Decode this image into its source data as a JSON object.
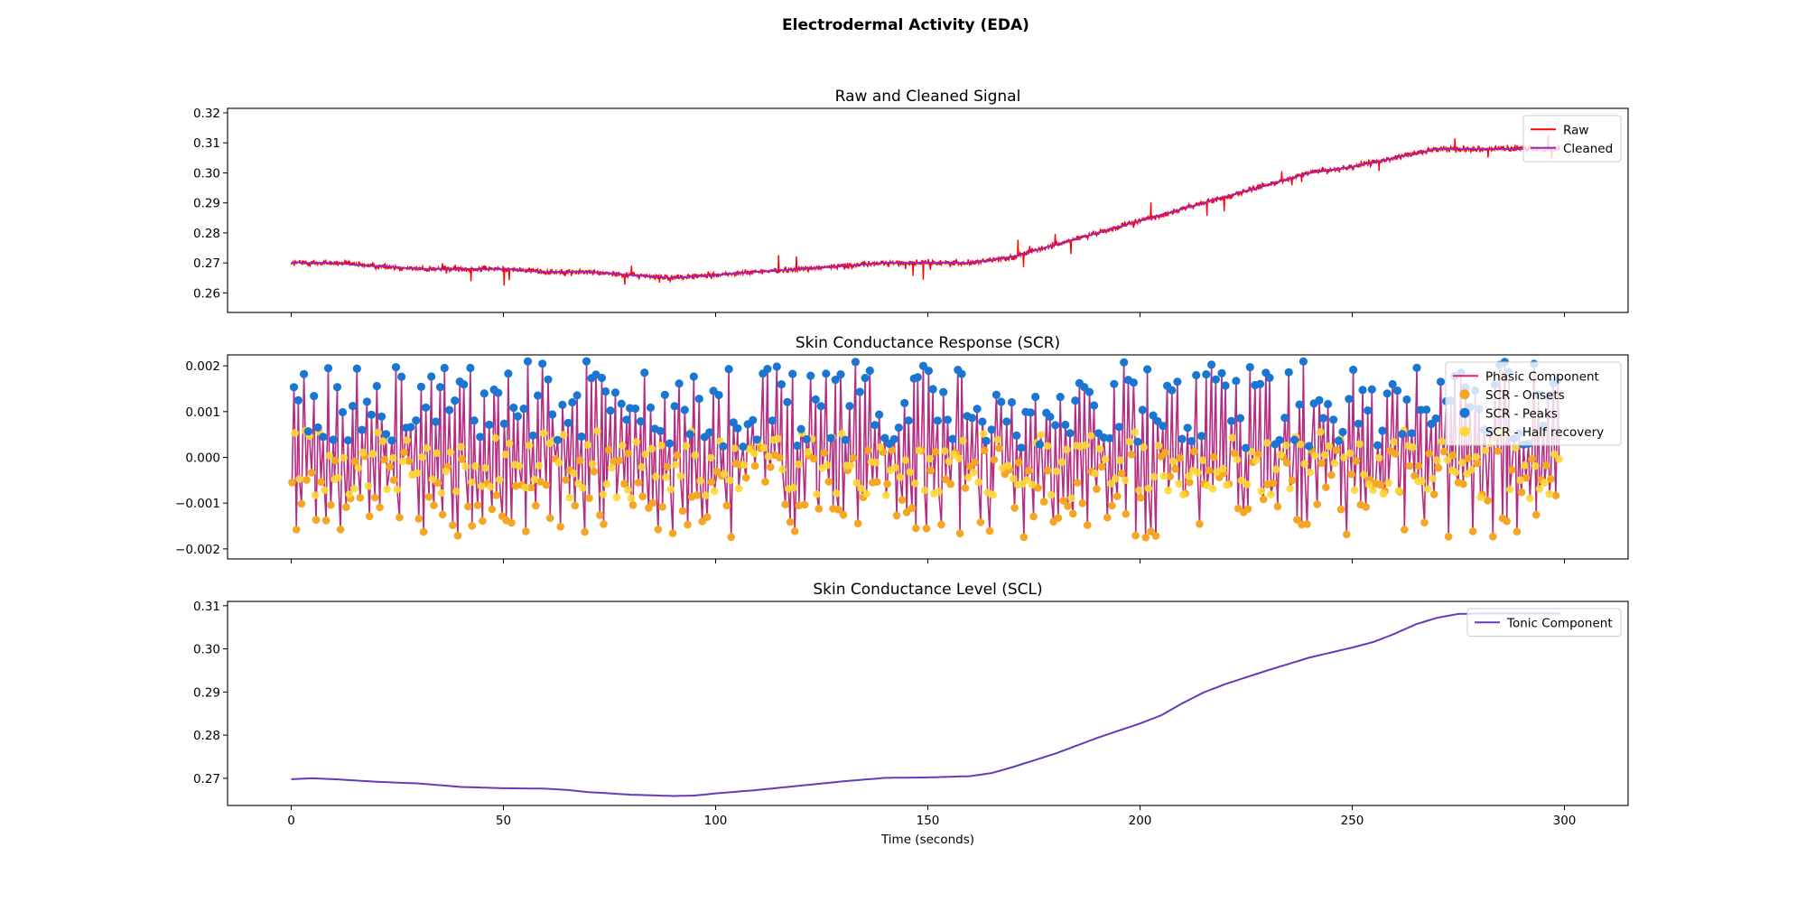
{
  "figure": {
    "title": "Electrodermal Activity (EDA)"
  },
  "chart_data": [
    {
      "type": "line",
      "title": "Raw and Cleaned Signal",
      "xlabel": "",
      "ylabel": "",
      "xlim": [
        -15,
        315
      ],
      "ylim": [
        0.2535,
        0.3215
      ],
      "x_ticks": [
        "0",
        "50",
        "100",
        "150",
        "200",
        "250",
        "300"
      ],
      "y_ticks": [
        "0.26",
        "0.27",
        "0.28",
        "0.29",
        "0.30",
        "0.31",
        "0.32"
      ],
      "legend_position": "upper-right",
      "grid": false,
      "series": [
        {
          "name": "Raw",
          "color": "#ff0000",
          "note_type": "noisy",
          "x": [
            0,
            10,
            20,
            30,
            40,
            50,
            60,
            70,
            80,
            90,
            100,
            110,
            120,
            130,
            140,
            150,
            160,
            165,
            170,
            180,
            190,
            200,
            210,
            220,
            230,
            240,
            250,
            260,
            270,
            280,
            290,
            300
          ],
          "y": [
            0.27,
            0.27,
            0.269,
            0.268,
            0.268,
            0.268,
            0.267,
            0.267,
            0.266,
            0.265,
            0.266,
            0.267,
            0.268,
            0.269,
            0.27,
            0.27,
            0.27,
            0.271,
            0.272,
            0.276,
            0.28,
            0.284,
            0.288,
            0.292,
            0.296,
            0.3,
            0.302,
            0.305,
            0.308,
            0.308,
            0.308,
            0.308
          ]
        },
        {
          "name": "Cleaned",
          "color": "#9c27b0",
          "x": [
            0,
            10,
            20,
            30,
            40,
            50,
            60,
            70,
            80,
            90,
            100,
            110,
            120,
            130,
            140,
            150,
            160,
            165,
            170,
            180,
            190,
            200,
            210,
            220,
            230,
            240,
            250,
            260,
            270,
            280,
            290,
            300
          ],
          "y": [
            0.27,
            0.27,
            0.269,
            0.268,
            0.268,
            0.268,
            0.267,
            0.267,
            0.266,
            0.265,
            0.266,
            0.267,
            0.268,
            0.269,
            0.27,
            0.27,
            0.27,
            0.271,
            0.272,
            0.276,
            0.28,
            0.284,
            0.288,
            0.292,
            0.296,
            0.3,
            0.302,
            0.305,
            0.308,
            0.308,
            0.308,
            0.308
          ]
        }
      ]
    },
    {
      "type": "line",
      "title": "Skin Conductance Response (SCR)",
      "xlabel": "",
      "ylabel": "",
      "xlim": [
        -15,
        315
      ],
      "ylim": [
        -0.00222,
        0.00224
      ],
      "x_ticks": [
        "0",
        "50",
        "100",
        "150",
        "200",
        "250",
        "300"
      ],
      "y_ticks": [
        "−0.002",
        "−0.001",
        "0.000",
        "0.001",
        "0.002"
      ],
      "y_tick_values": [
        -0.002,
        -0.001,
        0,
        0.001,
        0.002
      ],
      "legend_position": "upper-right",
      "grid": false,
      "scr_events": {
        "count": 260,
        "x_start": 0,
        "x_end": 299,
        "peak_range": [
          0.0002,
          0.0021
        ],
        "onset_range": [
          -0.00205,
          0.0006
        ],
        "recovery_range": [
          -0.0009,
          0.0006
        ]
      },
      "series": [
        {
          "name": "Phasic Component",
          "color": "#e91e63",
          "marker": "line"
        },
        {
          "name": "SCR - Onsets",
          "color": "#f5a623",
          "marker": "dot"
        },
        {
          "name": "SCR - Peaks",
          "color": "#1976d2",
          "marker": "dot"
        },
        {
          "name": "SCR - Half recovery",
          "color": "#fdd835",
          "marker": "dot"
        }
      ]
    },
    {
      "type": "line",
      "title": "Skin Conductance Level (SCL)",
      "xlabel": "Time (seconds)",
      "ylabel": "",
      "xlim": [
        -15,
        315
      ],
      "ylim": [
        0.2637,
        0.311
      ],
      "x_ticks": [
        "0",
        "50",
        "100",
        "150",
        "200",
        "250",
        "300"
      ],
      "y_ticks": [
        "0.27",
        "0.28",
        "0.29",
        "0.30",
        "0.31"
      ],
      "legend_position": "upper-right",
      "grid": false,
      "series": [
        {
          "name": "Tonic Component",
          "color": "#673ab7",
          "x": [
            0,
            5,
            10,
            20,
            30,
            40,
            50,
            60,
            65,
            70,
            80,
            90,
            95,
            100,
            110,
            120,
            130,
            140,
            150,
            160,
            165,
            170,
            180,
            190,
            200,
            205,
            210,
            215,
            220,
            230,
            240,
            250,
            255,
            260,
            265,
            270,
            275,
            280
          ],
          "y": [
            0.2698,
            0.27,
            0.2698,
            0.2692,
            0.2688,
            0.268,
            0.2677,
            0.2676,
            0.2673,
            0.2668,
            0.2662,
            0.2659,
            0.266,
            0.2665,
            0.2673,
            0.2683,
            0.2693,
            0.2701,
            0.2702,
            0.2705,
            0.2712,
            0.2726,
            0.2757,
            0.2794,
            0.2827,
            0.2846,
            0.2874,
            0.2899,
            0.2918,
            0.295,
            0.298,
            0.3003,
            0.3016,
            0.3035,
            0.3057,
            0.3072,
            0.3081,
            0.3082
          ]
        }
      ]
    }
  ]
}
